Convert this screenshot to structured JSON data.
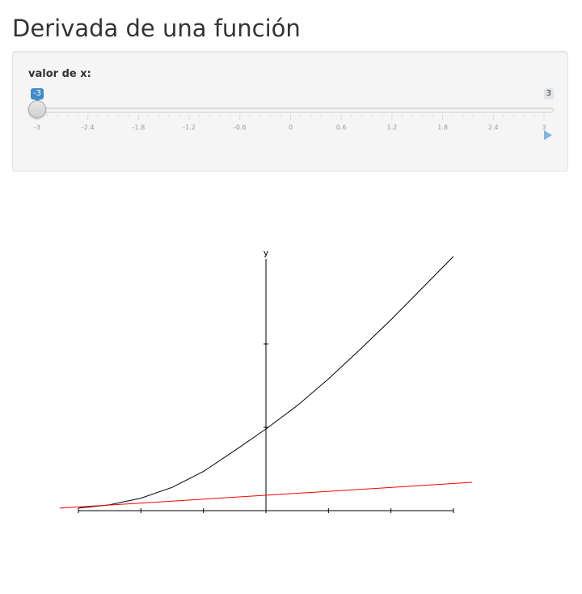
{
  "page": {
    "title": "Derivada de una función"
  },
  "slider": {
    "label": "valor de x:",
    "min": -3,
    "max": 3,
    "value": -3,
    "value_label": "-3",
    "max_label": "3",
    "tick_labels": [
      "-3",
      "-2.4",
      "-1.8",
      "-1.2",
      "-0.6",
      "0",
      "0.6",
      "1.2",
      "1.8",
      "2.4",
      "3"
    ],
    "accent_color": "#428bca",
    "play_icon": "play-icon"
  },
  "chart_data": {
    "type": "line",
    "title": "",
    "xlabel": "",
    "ylabel": "y",
    "xlim": [
      -3,
      3
    ],
    "ylim": [
      0,
      3
    ],
    "grid": false,
    "series": [
      {
        "color": "#000000",
        "x": [
          -3,
          -2.5,
          -2,
          -1.5,
          -1,
          -0.5,
          0,
          0.5,
          1,
          1.5,
          2,
          2.5,
          3
        ],
        "y": [
          0.03,
          0.07,
          0.15,
          0.28,
          0.47,
          0.72,
          0.98,
          1.26,
          1.58,
          1.93,
          2.29,
          2.67,
          3.05
        ]
      },
      {
        "color": "#ff0000",
        "x": [
          -3.3,
          3.3
        ],
        "y": [
          0.03,
          0.34
        ]
      }
    ]
  }
}
